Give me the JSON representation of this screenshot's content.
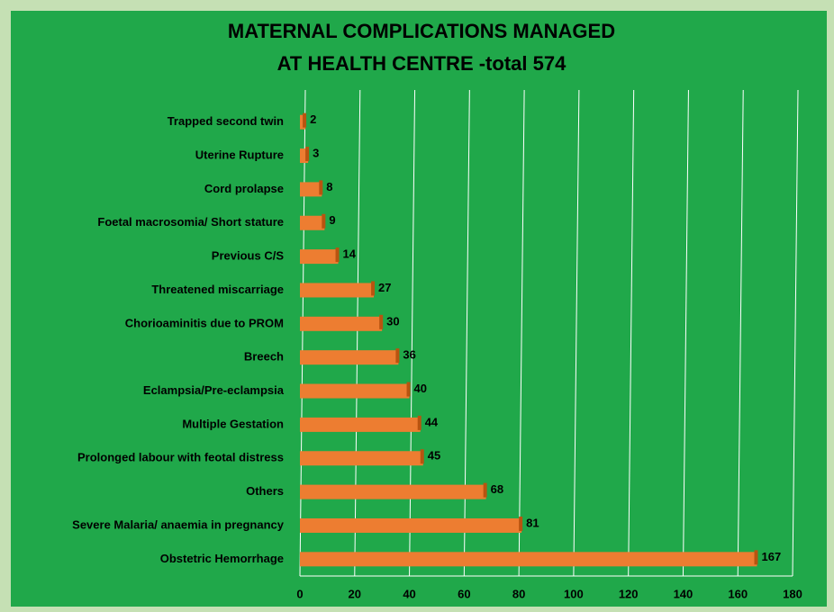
{
  "chart_data": {
    "type": "barh",
    "title": [
      "MATERNAL COMPLICATIONS MANAGED",
      "AT HEALTH CENTRE -total 574"
    ],
    "categories": [
      "Trapped second twin",
      "Uterine Rupture",
      "Cord prolapse",
      "Foetal macrosomia/ Short stature",
      "Previous  C/S",
      "Threatened miscarriage",
      "Chorioaminitis due to PROM",
      "Breech",
      "Eclampsia/Pre-eclampsia",
      "Multiple Gestation",
      "Prolonged labour with feotal distress",
      "Others",
      "Severe Malaria/ anaemia in pregnancy",
      "Obstetric Hemorrhage"
    ],
    "values": [
      2,
      3,
      8,
      9,
      14,
      27,
      30,
      36,
      40,
      44,
      45,
      68,
      81,
      167
    ],
    "color": "#ed7d31",
    "xlim": [
      0,
      180
    ],
    "xticks": [
      0,
      20,
      40,
      60,
      80,
      100,
      120,
      140,
      160,
      180
    ],
    "grid": true
  }
}
